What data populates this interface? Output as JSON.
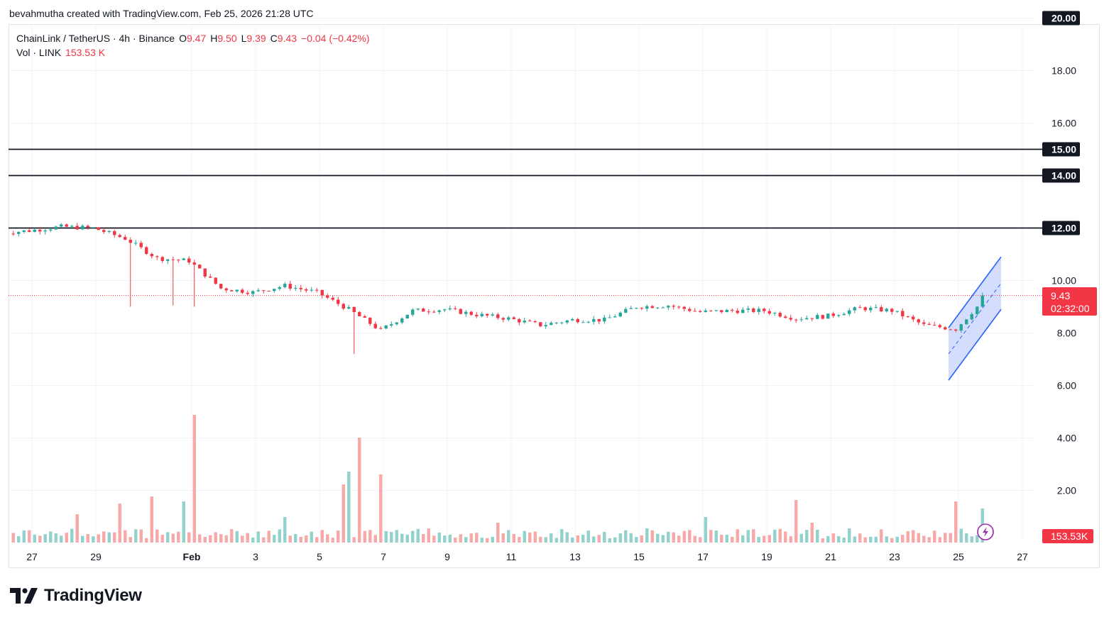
{
  "header": {
    "published_line": "bevahmutha created with TradingView.com, Feb 25, 2026 21:28 UTC"
  },
  "legend": {
    "symbol_line": "ChainLink / TetherUS · 4h · Binance",
    "o_label": "O",
    "o_value": "9.47",
    "h_label": "H",
    "h_value": "9.50",
    "l_label": "L",
    "l_value": "9.39",
    "c_label": "C",
    "c_value": "9.43",
    "change": "−0.04 (−0.42%)",
    "vol_label": "Vol · LINK",
    "vol_value": "153.53 K"
  },
  "brand": {
    "name": "TradingView",
    "icon": "tradingview-logo-icon"
  },
  "colors": {
    "up": "#26a69a",
    "down": "#f23645",
    "up_volume": "#92d2cc",
    "down_volume": "#f7a9a7",
    "channel_line": "#2962ff",
    "channel_fill": "#c5d3fb",
    "level_line": "#131722",
    "grid": "#f0f3fa"
  },
  "chart_data": {
    "type": "candlestick",
    "symbol": "ChainLink / TetherUS",
    "interval": "4h",
    "exchange": "Binance",
    "y_axis": {
      "min": 0,
      "max": 20,
      "ticks": [
        "2.00",
        "4.00",
        "6.00",
        "8.00",
        "10.00",
        "16.00",
        "18.00"
      ],
      "highlighted_levels": [
        "12.00",
        "14.00",
        "15.00",
        "20.00"
      ]
    },
    "x_axis": {
      "ticks": [
        "27",
        "29",
        "Feb",
        "3",
        "5",
        "7",
        "9",
        "11",
        "13",
        "15",
        "17",
        "19",
        "21",
        "23",
        "25",
        "27"
      ]
    },
    "horizontal_levels": [
      12,
      14,
      15
    ],
    "last_price": {
      "value": 9.43,
      "label": "9.43",
      "countdown": "02:32:00"
    },
    "volume_badge": "153.53K",
    "channel": {
      "start": "Feb 24",
      "end": "Feb 26",
      "upper": [
        8.2,
        10.9
      ],
      "lower": [
        6.2,
        8.9
      ]
    },
    "daily_closes": [
      {
        "date": "Jan 26",
        "close": 11.9
      },
      {
        "date": "Jan 27",
        "close": 12.05
      },
      {
        "date": "Jan 28",
        "close": 12.0
      },
      {
        "date": "Jan 29",
        "close": 11.6
      },
      {
        "date": "Jan 30",
        "close": 10.85
      },
      {
        "date": "Jan 31",
        "close": 10.75
      },
      {
        "date": "Feb 1",
        "close": 9.7
      },
      {
        "date": "Feb 2",
        "close": 9.55
      },
      {
        "date": "Feb 3",
        "close": 9.8
      },
      {
        "date": "Feb 4",
        "close": 9.55
      },
      {
        "date": "Feb 5",
        "close": 8.9
      },
      {
        "date": "Feb 6",
        "close": 8.1
      },
      {
        "date": "Feb 7",
        "close": 8.85
      },
      {
        "date": "Feb 8",
        "close": 8.9
      },
      {
        "date": "Feb 9",
        "close": 8.7
      },
      {
        "date": "Feb 10",
        "close": 8.55
      },
      {
        "date": "Feb 11",
        "close": 8.3
      },
      {
        "date": "Feb 12",
        "close": 8.5
      },
      {
        "date": "Feb 13",
        "close": 8.5
      },
      {
        "date": "Feb 14",
        "close": 9.0
      },
      {
        "date": "Feb 15",
        "close": 9.05
      },
      {
        "date": "Feb 16",
        "close": 8.8
      },
      {
        "date": "Feb 17",
        "close": 8.85
      },
      {
        "date": "Feb 18",
        "close": 8.85
      },
      {
        "date": "Feb 19",
        "close": 8.55
      },
      {
        "date": "Feb 20",
        "close": 8.65
      },
      {
        "date": "Feb 21",
        "close": 8.95
      },
      {
        "date": "Feb 22",
        "close": 8.85
      },
      {
        "date": "Feb 23",
        "close": 8.3
      },
      {
        "date": "Feb 24",
        "close": 8.15
      },
      {
        "date": "Feb 25",
        "close": 9.43
      }
    ]
  }
}
